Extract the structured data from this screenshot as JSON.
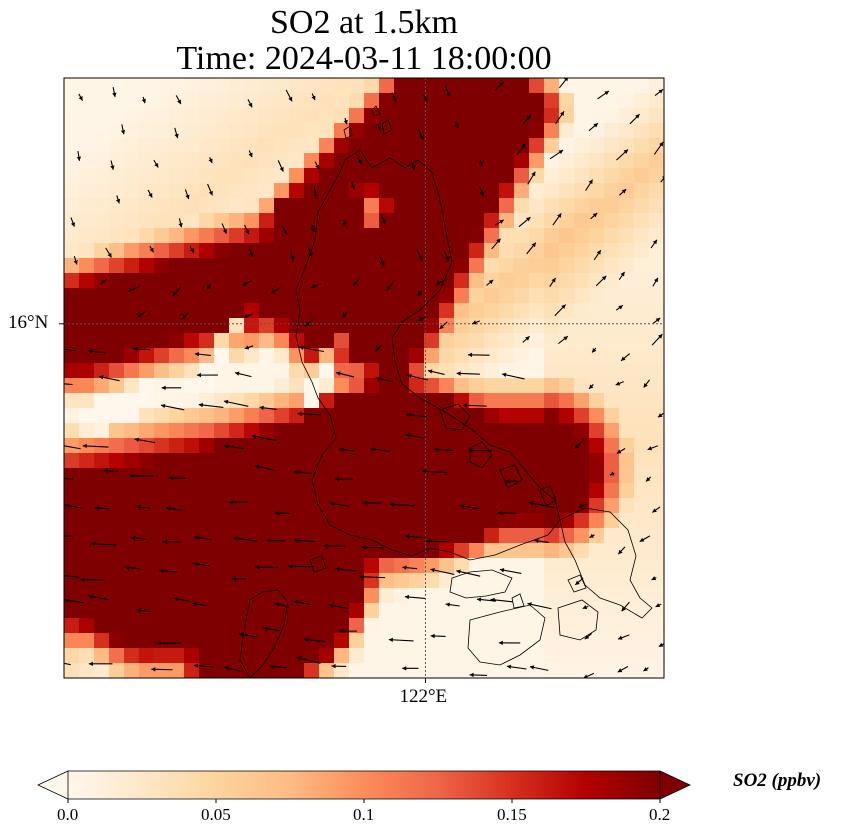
{
  "title": {
    "line1": "SO2 at 1.5km",
    "line2": "Time: 2024-03-11 18:00:00"
  },
  "chart_data": {
    "type": "heatmap",
    "title": "SO2 at 1.5km",
    "subtitle": "Time: 2024-03-11 18:00:00",
    "variable": "SO2",
    "units": "ppbv",
    "lon_ticks": [
      {
        "value": 122,
        "label": "122°E"
      }
    ],
    "lat_ticks": [
      {
        "value": 16,
        "label": "16°N"
      }
    ],
    "lon_range": [
      119.5,
      123.65
    ],
    "lat_range": [
      13.55,
      17.7
    ],
    "gridlines": "dotted at tick values",
    "overlays": [
      "coastlines",
      "wind vectors"
    ],
    "colorbar": {
      "label": "SO2 (ppbv)",
      "cmap": [
        "#fff7ec",
        "#fee8c8",
        "#fdd49e",
        "#fdbb84",
        "#fc8d59",
        "#ef6548",
        "#d7301f",
        "#b30000",
        "#7f0000"
      ],
      "range": [
        0.0,
        0.2
      ],
      "extend": "both",
      "ticks": [
        {
          "value": 0.0,
          "label": "0.0"
        },
        {
          "value": 0.05,
          "label": "0.05"
        },
        {
          "value": 0.1,
          "label": "0.1"
        },
        {
          "value": 0.15,
          "label": "0.15"
        },
        {
          "value": 0.2,
          "label": "0.2"
        }
      ]
    }
  }
}
